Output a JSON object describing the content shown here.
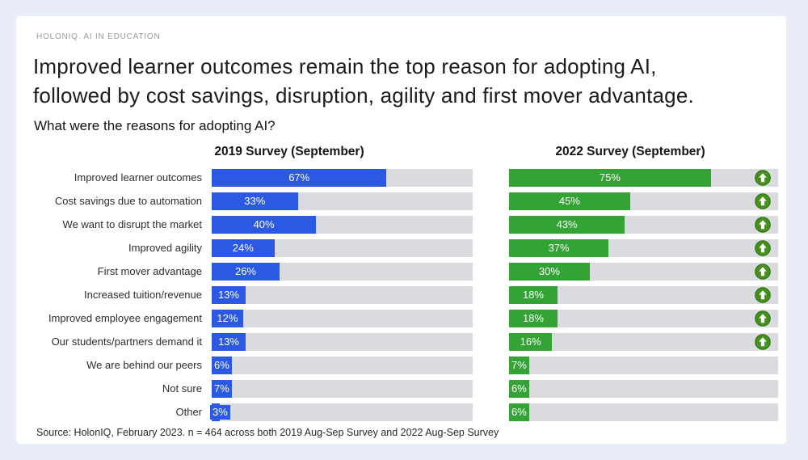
{
  "page": {
    "brand": "HOLONIQ. AI IN EDUCATION",
    "title_line1": "Improved learner outcomes remain the top reason for adopting AI,",
    "title_line2": "followed by cost savings, disruption, agility and first mover advantage.",
    "question": "What were the reasons for adopting AI?",
    "source": "Source: HolonIQ, February 2023. n = 464 across both 2019 Aug-Sep Survey and 2022 Aug-Sep Survey"
  },
  "colors": {
    "bar_2019": "#2b59e3",
    "bar_2022": "#34a336",
    "track": "#d9dbde",
    "arrow_fill": "#47901e",
    "arrow_ring": "#2e7214",
    "page_background": "#e9edf8",
    "card_background": "#ffffff"
  },
  "icons": {
    "increase": "arrow-up-circle-icon"
  },
  "chart_data": {
    "type": "bar",
    "orientation": "horizontal",
    "title": "What were the reasons for adopting AI?",
    "value_suffix": "%",
    "xlim": [
      0,
      100
    ],
    "legend_position": "column-headers",
    "grid": false,
    "categories": [
      "Improved learner outcomes",
      "Cost savings due to automation",
      "We want to disrupt the market",
      "Improved agility",
      "First mover advantage",
      "Increased tuition/revenue",
      "Improved employee engagement",
      "Our students/partners demand it",
      "We are behind our peers",
      "Not sure",
      "Other"
    ],
    "series": [
      {
        "name": "2019 Survey (September)",
        "color": "#2b59e3",
        "values": [
          67,
          33,
          40,
          24,
          26,
          13,
          12,
          13,
          6,
          7,
          3
        ]
      },
      {
        "name": "2022 Survey (September)",
        "color": "#34a336",
        "values": [
          75,
          45,
          43,
          37,
          30,
          18,
          18,
          16,
          7,
          6,
          6
        ]
      }
    ],
    "increase_arrow_rows": [
      true,
      true,
      true,
      true,
      true,
      true,
      true,
      true,
      false,
      false,
      false
    ]
  }
}
